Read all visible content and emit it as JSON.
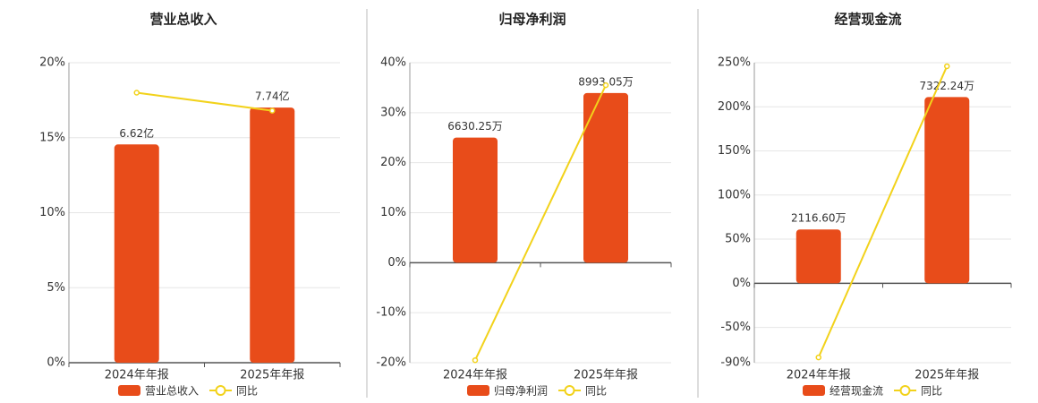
{
  "chart_data": [
    {
      "type": "bar",
      "title": "营业总收入",
      "categories": [
        "2024年年报",
        "2025年年报"
      ],
      "ylim": [
        0,
        20
      ],
      "yticks": [
        {
          "value": 0,
          "label": "0%"
        },
        {
          "value": 5,
          "label": "5%"
        },
        {
          "value": 10,
          "label": "10%"
        },
        {
          "value": 15,
          "label": "15%"
        },
        {
          "value": 20,
          "label": "20%"
        }
      ],
      "y2lim": [
        0,
        9.1
      ],
      "grid": true,
      "series": [
        {
          "name": "营业总收入",
          "type": "bar",
          "axis": "y2",
          "color": "#e84c1a",
          "values": [
            6.62,
            7.74
          ],
          "value_labels": [
            "6.62亿",
            "7.74亿"
          ]
        },
        {
          "name": "同比",
          "type": "line",
          "color": "#f2d21b",
          "values": [
            18,
            16.8
          ]
        }
      ]
    },
    {
      "type": "bar",
      "title": "归母净利润",
      "categories": [
        "2024年年报",
        "2025年年报"
      ],
      "ylim": [
        -20,
        40
      ],
      "yticks": [
        {
          "value": -20,
          "label": "-20%"
        },
        {
          "value": -10,
          "label": "-10%"
        },
        {
          "value": 0,
          "label": "0%"
        },
        {
          "value": 10,
          "label": "10%"
        },
        {
          "value": 20,
          "label": "20%"
        },
        {
          "value": 30,
          "label": "30%"
        },
        {
          "value": 40,
          "label": "40%"
        }
      ],
      "y2lim": [
        -5300,
        10600
      ],
      "grid": true,
      "series": [
        {
          "name": "归母净利润",
          "type": "bar",
          "axis": "y2",
          "color": "#e84c1a",
          "values": [
            6630.25,
            8993.05
          ],
          "value_labels": [
            "6630.25万",
            "8993.05万"
          ]
        },
        {
          "name": "同比",
          "type": "line",
          "color": "#f2d21b",
          "values": [
            -19.5,
            35.5
          ]
        }
      ]
    },
    {
      "type": "bar",
      "title": "经营现金流",
      "categories": [
        "2024年年报",
        "2025年年报"
      ],
      "ylim": [
        -90,
        250
      ],
      "yticks": [
        {
          "value": -90,
          "label": "-90%"
        },
        {
          "value": -50,
          "label": "-50%"
        },
        {
          "value": 0,
          "label": "0%"
        },
        {
          "value": 50,
          "label": "50%"
        },
        {
          "value": 100,
          "label": "100%"
        },
        {
          "value": 150,
          "label": "150%"
        },
        {
          "value": 200,
          "label": "200%"
        },
        {
          "value": 250,
          "label": "250%"
        }
      ],
      "y2lim": [
        -3123,
        8675
      ],
      "grid": true,
      "series": [
        {
          "name": "经营现金流",
          "type": "bar",
          "axis": "y2",
          "color": "#e84c1a",
          "values": [
            2116.6,
            7322.24
          ],
          "value_labels": [
            "2116.60万",
            "7322.24万"
          ]
        },
        {
          "name": "同比",
          "type": "line",
          "color": "#f2d21b",
          "values": [
            -84,
            246
          ]
        }
      ]
    }
  ]
}
